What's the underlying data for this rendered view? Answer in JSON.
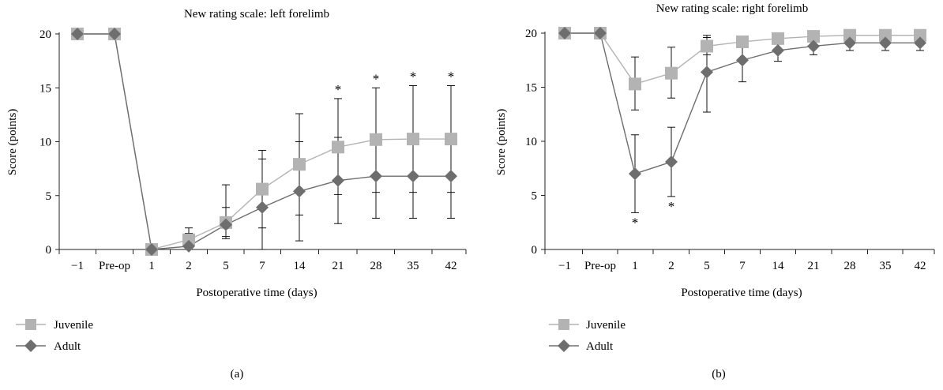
{
  "chart_data": [
    {
      "type": "line",
      "title": "New rating scale: left forelimb",
      "xlabel": "Postoperative time (days)",
      "ylabel": "Score (points)",
      "categories": [
        "−1",
        "Pre-op",
        "1",
        "2",
        "5",
        "7",
        "14",
        "21",
        "28",
        "35",
        "42"
      ],
      "ylim": [
        0,
        20
      ],
      "yticks": [
        "0",
        "5",
        "10",
        "15",
        "20"
      ],
      "grid": false,
      "legend_position": "bottom-left",
      "panel_label": "(a)",
      "significance_marker": "*",
      "significant_indices": [
        7,
        8,
        9,
        10
      ],
      "series": [
        {
          "name": "Juvenile",
          "marker": "square",
          "color": "#b3b3b3",
          "values": [
            20,
            20,
            0,
            0.9,
            2.5,
            5.6,
            7.9,
            9.5,
            10.2,
            10.25,
            10.25
          ],
          "error_upper": [
            null,
            null,
            null,
            2.0,
            6.0,
            9.2,
            12.6,
            14.0,
            15.0,
            15.2,
            15.2
          ],
          "error_lower": [
            null,
            null,
            null,
            0,
            1.0,
            2.0,
            3.2,
            5.1,
            5.3,
            5.3,
            5.3
          ]
        },
        {
          "name": "Adult",
          "marker": "diamond",
          "color": "#6e6e6e",
          "values": [
            20,
            20,
            0,
            0.3,
            2.3,
            3.9,
            5.4,
            6.4,
            6.8,
            6.8,
            6.8
          ],
          "error_upper": [
            null,
            null,
            null,
            1.5,
            3.9,
            8.4,
            10.0,
            10.4,
            10.7,
            10.7,
            10.7
          ],
          "error_lower": [
            null,
            null,
            null,
            0,
            1.2,
            0,
            0.8,
            2.4,
            2.9,
            2.9,
            2.9
          ]
        }
      ]
    },
    {
      "type": "line",
      "title": "New rating scale: right forelimb",
      "xlabel": "Postoperative time (days)",
      "ylabel": "Score (points)",
      "categories": [
        "−1",
        "Pre-op",
        "1",
        "2",
        "5",
        "7",
        "14",
        "21",
        "28",
        "35",
        "42"
      ],
      "ylim": [
        0,
        20
      ],
      "yticks": [
        "0",
        "5",
        "10",
        "15",
        "20"
      ],
      "grid": false,
      "legend_position": "bottom-left",
      "panel_label": "(b)",
      "significance_marker": "*",
      "significant_indices": [
        2,
        3
      ],
      "series": [
        {
          "name": "Juvenile",
          "marker": "square",
          "color": "#b3b3b3",
          "values": [
            20,
            20,
            15.3,
            16.3,
            18.8,
            19.2,
            19.5,
            19.7,
            19.8,
            19.8,
            19.8
          ],
          "error_upper": [
            null,
            null,
            17.8,
            18.7,
            19.6,
            19.7,
            19.8,
            19.9,
            19.9,
            19.9,
            19.9
          ],
          "error_lower": [
            null,
            null,
            12.9,
            14.0,
            18.0,
            18.7,
            19.2,
            19.4,
            19.5,
            19.5,
            19.5
          ]
        },
        {
          "name": "Adult",
          "marker": "diamond",
          "color": "#6e6e6e",
          "values": [
            20,
            20,
            7.0,
            8.1,
            16.4,
            17.5,
            18.4,
            18.8,
            19.1,
            19.1,
            19.1
          ],
          "error_upper": [
            null,
            null,
            10.6,
            11.3,
            19.8,
            19.6,
            19.5,
            19.5,
            19.6,
            19.6,
            19.6
          ],
          "error_lower": [
            null,
            null,
            3.4,
            4.9,
            12.7,
            15.5,
            17.4,
            18.0,
            18.4,
            18.4,
            18.4
          ]
        }
      ]
    }
  ]
}
